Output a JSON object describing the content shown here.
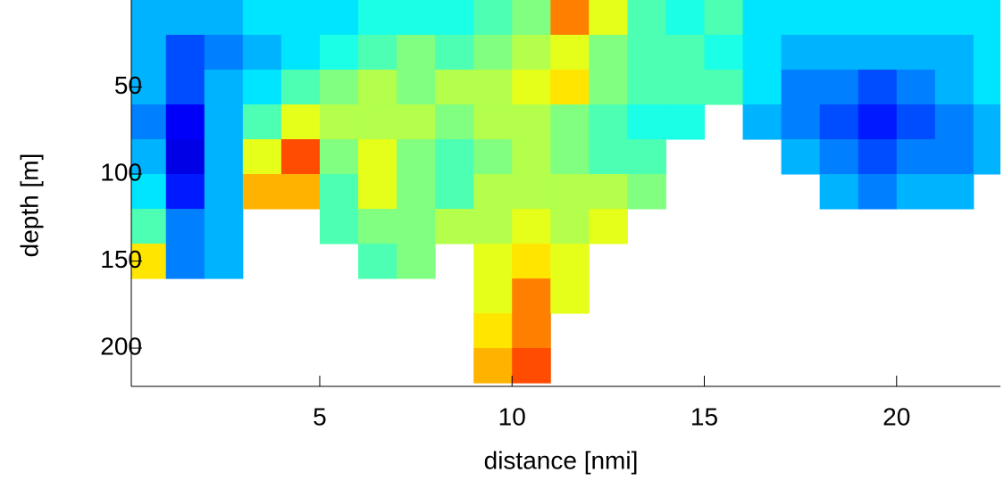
{
  "chart_data": {
    "type": "heatmap",
    "colormap": "jet",
    "clim": [
      0,
      1
    ],
    "x_label": "distance [nmi]",
    "y_label": "depth  [m]",
    "x": [
      0.5,
      1.5,
      2.5,
      3.5,
      4.5,
      5.5,
      6.5,
      7.5,
      8.5,
      9.5,
      10.5,
      11.5,
      12.5,
      13.5,
      14.5,
      15.5,
      16.5,
      17.5,
      18.5,
      19.5,
      20.5,
      21.5,
      22.5
    ],
    "y": [
      10,
      30,
      50,
      70,
      90,
      110,
      130,
      150,
      170,
      190,
      210,
      230
    ],
    "values": [
      [
        0.3,
        0.3,
        0.3,
        0.25,
        0.3,
        0.35,
        0.45,
        0.65,
        null,
        null,
        null,
        null
      ],
      [
        0.3,
        0.2,
        0.2,
        0.12,
        0.1,
        0.15,
        0.25,
        0.25,
        null,
        null,
        null,
        null
      ],
      [
        0.3,
        0.25,
        0.3,
        0.3,
        0.3,
        0.3,
        0.3,
        0.3,
        null,
        null,
        null,
        null
      ],
      [
        0.35,
        0.3,
        0.35,
        0.45,
        0.6,
        0.7,
        null,
        null,
        null,
        null,
        null,
        null
      ],
      [
        0.35,
        0.35,
        0.45,
        0.6,
        0.8,
        0.7,
        null,
        null,
        null,
        null,
        null,
        null
      ],
      [
        0.35,
        0.4,
        0.5,
        0.55,
        0.5,
        0.45,
        0.45,
        null,
        null,
        null,
        null,
        null
      ],
      [
        0.4,
        0.45,
        0.55,
        0.55,
        0.6,
        0.6,
        0.5,
        0.45,
        null,
        null,
        null,
        null
      ],
      [
        0.4,
        0.5,
        0.5,
        0.55,
        0.5,
        0.5,
        0.5,
        0.5,
        null,
        null,
        null,
        null
      ],
      [
        0.4,
        0.45,
        0.55,
        0.5,
        0.45,
        0.45,
        0.55,
        null,
        null,
        null,
        null,
        null
      ],
      [
        0.45,
        0.5,
        0.55,
        0.55,
        0.5,
        0.55,
        0.55,
        0.6,
        0.6,
        0.65,
        0.7,
        null
      ],
      [
        0.5,
        0.55,
        0.6,
        0.55,
        0.55,
        0.55,
        0.6,
        0.65,
        0.75,
        0.75,
        0.8,
        null
      ],
      [
        0.75,
        0.6,
        0.65,
        0.5,
        0.5,
        0.55,
        0.55,
        0.6,
        0.6,
        null,
        null,
        null
      ],
      [
        0.6,
        0.5,
        0.5,
        0.45,
        0.45,
        0.55,
        0.6,
        null,
        null,
        null,
        null,
        null
      ],
      [
        0.45,
        0.45,
        0.45,
        0.4,
        0.45,
        0.5,
        null,
        null,
        null,
        null,
        null,
        null
      ],
      [
        0.4,
        0.45,
        0.45,
        0.4,
        null,
        null,
        null,
        null,
        null,
        null,
        null,
        null
      ],
      [
        0.45,
        0.4,
        0.45,
        null,
        null,
        null,
        null,
        null,
        null,
        null,
        null,
        null
      ],
      [
        0.35,
        0.35,
        0.35,
        0.3,
        null,
        null,
        null,
        null,
        null,
        null,
        null,
        null
      ],
      [
        0.35,
        0.3,
        0.25,
        0.25,
        0.3,
        null,
        null,
        null,
        null,
        null,
        null,
        null
      ],
      [
        0.35,
        0.3,
        0.25,
        0.2,
        0.25,
        0.3,
        null,
        null,
        null,
        null,
        null,
        null
      ],
      [
        0.35,
        0.3,
        0.2,
        0.15,
        0.2,
        0.25,
        null,
        null,
        null,
        null,
        null,
        null
      ],
      [
        0.35,
        0.3,
        0.25,
        0.2,
        0.25,
        0.3,
        null,
        null,
        null,
        null,
        null,
        null
      ],
      [
        0.35,
        0.3,
        0.3,
        0.25,
        0.25,
        0.3,
        null,
        null,
        null,
        null,
        null,
        null
      ],
      [
        0.35,
        0.35,
        0.35,
        0.3,
        0.3,
        null,
        null,
        null,
        null,
        null,
        null,
        null
      ]
    ],
    "xlim": [
      0.1,
      22.7
    ],
    "ylim": [
      0,
      222
    ],
    "xticks": [
      5,
      10,
      15,
      20
    ],
    "yticks": [
      50,
      100,
      150,
      200
    ],
    "grid": false
  }
}
